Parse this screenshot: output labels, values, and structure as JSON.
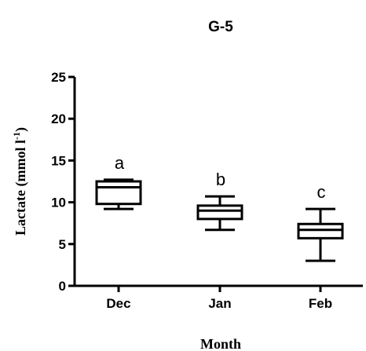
{
  "chart_data": {
    "type": "box",
    "title": "G-5",
    "xlabel": "Month",
    "ylabel_main": "Lactate (mmol l",
    "ylabel_sup": "-1",
    "ylabel_close": ")",
    "ylim": [
      0,
      25
    ],
    "yticks": [
      0,
      5,
      10,
      15,
      20,
      25
    ],
    "categories": [
      "Dec",
      "Jan",
      "Feb"
    ],
    "boxes": [
      {
        "category": "Dec",
        "min": 9.2,
        "q1": 9.8,
        "median": 11.8,
        "q3": 12.5,
        "max": 12.7,
        "annotation": "a"
      },
      {
        "category": "Jan",
        "min": 6.7,
        "q1": 8.0,
        "median": 9.0,
        "q3": 9.6,
        "max": 10.7,
        "annotation": "b"
      },
      {
        "category": "Feb",
        "min": 3.0,
        "q1": 5.7,
        "median": 6.7,
        "q3": 7.4,
        "max": 9.2,
        "annotation": "c"
      }
    ]
  }
}
